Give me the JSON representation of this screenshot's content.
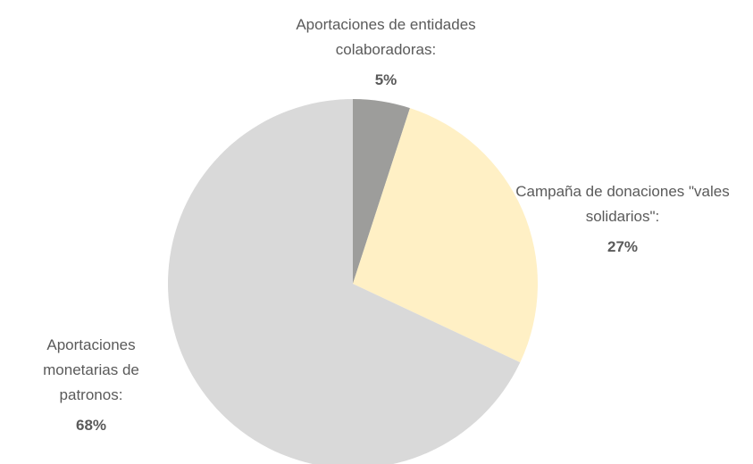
{
  "chart_data": {
    "type": "pie",
    "categories": [
      "Aportaciones de entidades colaboradoras:",
      "Campaña de donaciones \"vales solidarios\":",
      "Aportaciones monetarias de patronos:"
    ],
    "values": [
      5,
      27,
      68
    ],
    "value_labels": [
      "5%",
      "27%",
      "68%"
    ],
    "colors": [
      "#9d9d9b",
      "#fff0c5",
      "#d9d9d9"
    ]
  }
}
